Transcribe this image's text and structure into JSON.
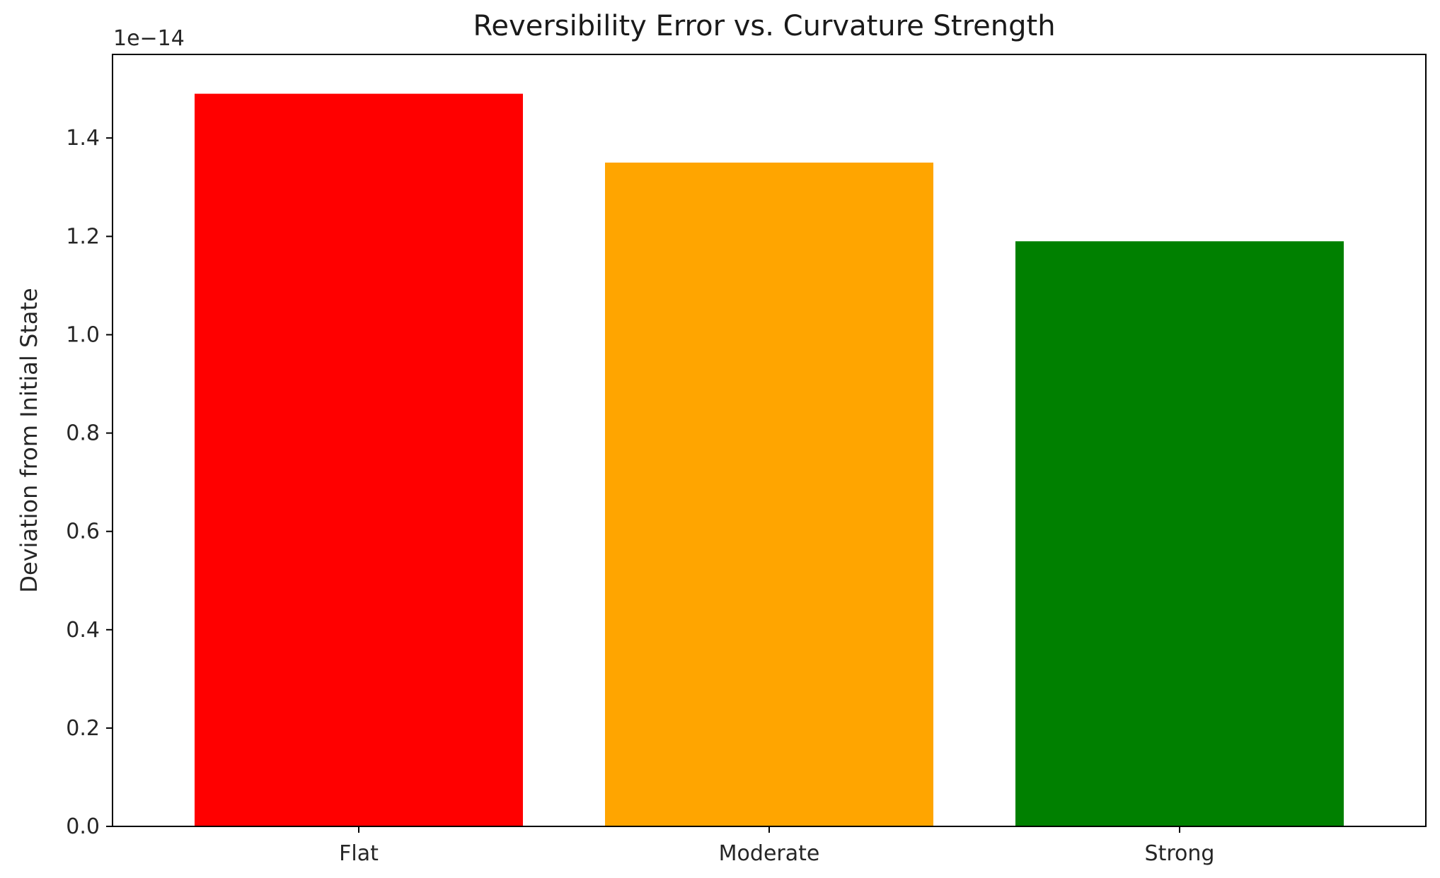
{
  "chart_data": {
    "type": "bar",
    "title": "Reversibility Error vs. Curvature Strength",
    "xlabel": "",
    "ylabel": "Deviation from Initial State",
    "y_offset_label": "1e−14",
    "y_scale_factor": 1e-14,
    "categories": [
      "Flat",
      "Moderate",
      "Strong"
    ],
    "values": [
      1.49e-14,
      1.35e-14,
      1.19e-14
    ],
    "bar_colors": [
      "#ff0000",
      "#ffa500",
      "#008000"
    ],
    "ylim": [
      0,
      1.57e-14
    ],
    "yticks": [
      0.0,
      0.2,
      0.4,
      0.6,
      0.8,
      1.0,
      1.2,
      1.4
    ],
    "ytick_labels": [
      "0.0",
      "0.2",
      "0.4",
      "0.6",
      "0.8",
      "1.0",
      "1.2",
      "1.4"
    ],
    "grid": false,
    "legend": "none"
  }
}
